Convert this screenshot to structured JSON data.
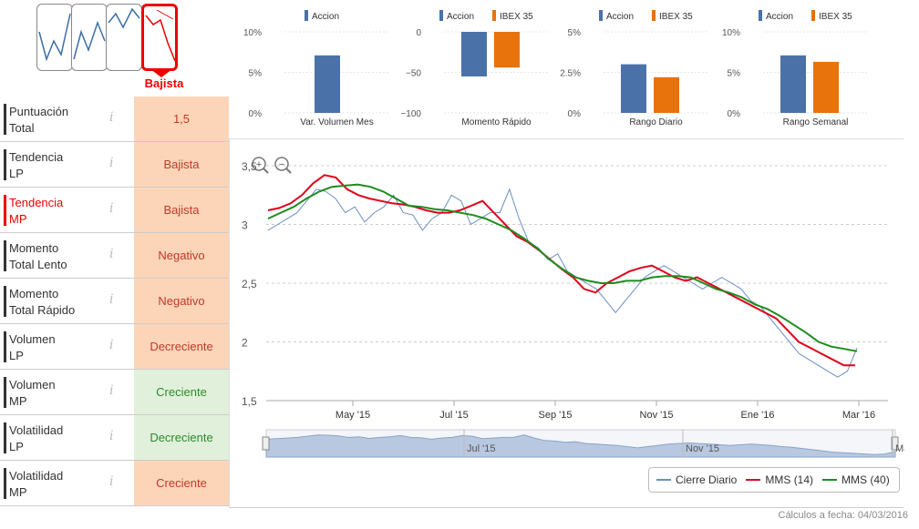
{
  "trend": {
    "selected_label": "Bajista",
    "thumbnails": [
      "range-1",
      "uptrend-1",
      "uptrend-2",
      "downtrend"
    ]
  },
  "indicators": [
    {
      "label_line1": "Puntuación",
      "label_line2": "Total",
      "value": "1,5",
      "tone": "neg",
      "active": false
    },
    {
      "label_line1": "Tendencia",
      "label_line2": "LP",
      "value": "Bajista",
      "tone": "neg",
      "active": false
    },
    {
      "label_line1": "Tendencia",
      "label_line2": "MP",
      "value": "Bajista",
      "tone": "neg",
      "active": true
    },
    {
      "label_line1": "Momento",
      "label_line2": "Total Lento",
      "value": "Negativo",
      "tone": "neg",
      "active": false
    },
    {
      "label_line1": "Momento",
      "label_line2": "Total Rápido",
      "value": "Negativo",
      "tone": "neg",
      "active": false
    },
    {
      "label_line1": "Volumen",
      "label_line2": "LP",
      "value": "Decreciente",
      "tone": "neg",
      "active": false
    },
    {
      "label_line1": "Volumen",
      "label_line2": "MP",
      "value": "Creciente",
      "tone": "pos",
      "active": false
    },
    {
      "label_line1": "Volatilidad",
      "label_line2": "LP",
      "value": "Decreciente",
      "tone": "pos",
      "active": false
    },
    {
      "label_line1": "Volatilidad",
      "label_line2": "MP",
      "value": "Creciente",
      "tone": "neg",
      "active": false
    }
  ],
  "info_glyph": "i",
  "colors": {
    "accion": "#4a72a8",
    "ibex": "#e8720c",
    "cierre": "#6b8fc0",
    "mms14": "#e0001b",
    "mms40": "#1e8c1e"
  },
  "chart_data": [
    {
      "type": "bar",
      "title": "Var. Volumen Mes",
      "series": [
        {
          "name": "Accion",
          "values": [
            7.1
          ]
        }
      ],
      "yticks": [
        "10%",
        "5%",
        "0%"
      ],
      "ylim": [
        0,
        10
      ]
    },
    {
      "type": "bar",
      "title": "Momento Rápido",
      "series": [
        {
          "name": "Accion",
          "values": [
            -55
          ]
        },
        {
          "name": "IBEX 35",
          "values": [
            -44
          ]
        }
      ],
      "yticks": [
        "0",
        "−50",
        "−100"
      ],
      "ylim": [
        -100,
        0
      ]
    },
    {
      "type": "bar",
      "title": "Rango Diario",
      "series": [
        {
          "name": "Accion",
          "values": [
            3.0
          ]
        },
        {
          "name": "IBEX 35",
          "values": [
            2.2
          ]
        }
      ],
      "yticks": [
        "5%",
        "2.5%",
        "0%"
      ],
      "ylim": [
        0,
        5
      ]
    },
    {
      "type": "bar",
      "title": "Rango Semanal",
      "series": [
        {
          "name": "Accion",
          "values": [
            7.1
          ]
        },
        {
          "name": "IBEX 35",
          "values": [
            6.3
          ]
        }
      ],
      "yticks": [
        "10%",
        "5%",
        "0%"
      ],
      "ylim": [
        0,
        10
      ]
    },
    {
      "type": "line",
      "title": "",
      "ylim": [
        1.5,
        3.5
      ],
      "yticks": [
        "3,5",
        "3",
        "2,5",
        "2",
        "1,5"
      ],
      "xticks": [
        "May '15",
        "Jul '15",
        "Sep '15",
        "Nov '15",
        "Ene '16",
        "Mar '16"
      ],
      "navigator_labels": [
        "Jul '15",
        "Nov '15",
        "Ma"
      ],
      "series": [
        {
          "name": "Cierre Diario",
          "values": [
            2.95,
            3.0,
            3.05,
            3.1,
            3.2,
            3.3,
            3.28,
            3.22,
            3.1,
            3.15,
            3.02,
            3.1,
            3.15,
            3.25,
            3.1,
            3.08,
            2.95,
            3.05,
            3.1,
            3.25,
            3.2,
            3.0,
            3.05,
            3.1,
            3.1,
            3.3,
            3.05,
            2.85,
            2.8,
            2.7,
            2.75,
            2.6,
            2.55,
            2.5,
            2.45,
            2.35,
            2.25,
            2.35,
            2.45,
            2.55,
            2.6,
            2.65,
            2.6,
            2.55,
            2.5,
            2.45,
            2.5,
            2.55,
            2.5,
            2.45,
            2.35,
            2.3,
            2.2,
            2.1,
            2.0,
            1.9,
            1.85,
            1.8,
            1.75,
            1.7,
            1.75,
            1.95
          ]
        },
        {
          "name": "MMS (14)",
          "values": [
            3.12,
            3.14,
            3.18,
            3.25,
            3.35,
            3.42,
            3.4,
            3.3,
            3.25,
            3.22,
            3.2,
            3.18,
            3.17,
            3.15,
            3.12,
            3.1,
            3.1,
            3.12,
            3.16,
            3.2,
            3.1,
            3.0,
            2.9,
            2.85,
            2.78,
            2.7,
            2.62,
            2.55,
            2.45,
            2.42,
            2.5,
            2.55,
            2.6,
            2.63,
            2.65,
            2.6,
            2.55,
            2.52,
            2.55,
            2.5,
            2.45,
            2.4,
            2.35,
            2.3,
            2.25,
            2.2,
            2.1,
            2.0,
            1.95,
            1.9,
            1.85,
            1.8,
            1.8
          ]
        },
        {
          "name": "MMS (40)",
          "values": [
            3.05,
            3.1,
            3.15,
            3.22,
            3.28,
            3.32,
            3.33,
            3.34,
            3.32,
            3.28,
            3.22,
            3.16,
            3.15,
            3.13,
            3.12,
            3.1,
            3.08,
            3.05,
            3.0,
            2.95,
            2.88,
            2.8,
            2.7,
            2.62,
            2.55,
            2.52,
            2.5,
            2.5,
            2.52,
            2.52,
            2.55,
            2.56,
            2.56,
            2.55,
            2.5,
            2.45,
            2.42,
            2.38,
            2.32,
            2.28,
            2.22,
            2.15,
            2.08,
            2.0,
            1.96,
            1.94,
            1.92
          ]
        }
      ]
    }
  ],
  "legend": {
    "cierre": "Cierre Diario",
    "mms14": "MMS (14)",
    "mms40": "MMS (40)"
  },
  "footer": {
    "date_text": "Cálculos a fecha: 04/03/2016"
  },
  "zoom": {
    "in_icon": "+",
    "out_icon": "−"
  }
}
